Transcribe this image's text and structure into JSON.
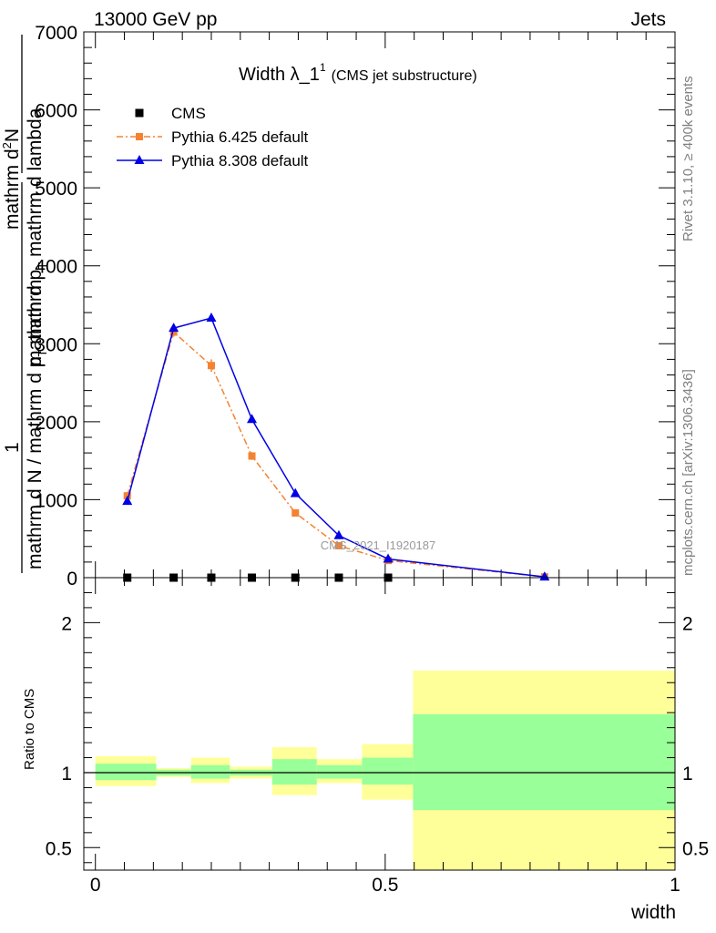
{
  "header": {
    "left": "13000 GeV pp",
    "right": "Jets"
  },
  "side_labels": {
    "rivet": "Rivet 3.1.10, ≥ 400k events",
    "mcplots": "mcplots.cern.ch [arXiv:1306.3436]"
  },
  "chart_data": [
    {
      "type": "line",
      "title": "Width λ_1",
      "title_sup": "1",
      "subtitle": "(CMS jet substructure)",
      "watermark": "CMS_2021_I1920187",
      "ylabel_parts": {
        "frac_num": "1",
        "frac_den": "mathrm d N / mathrm d p",
        "frac_den_sub": "T",
        "frac_den_tail": " mathrm",
        "deriv_num": "mathrm d",
        "deriv_num_sup": "2",
        "deriv_num_tail": "N",
        "deriv_den": "mathrm d p",
        "deriv_den_sub": "T",
        "deriv_den_tail": " mathrm d lambda"
      },
      "ylim": [
        0,
        7000
      ],
      "xlim": [
        -0.02,
        1.0
      ],
      "y_ticks": [
        {
          "value": 0,
          "label": "0"
        },
        {
          "value": 1000,
          "label": "1000"
        },
        {
          "value": 2000,
          "label": "2000"
        },
        {
          "value": 3000,
          "label": "3000"
        },
        {
          "value": 4000,
          "label": "4000"
        },
        {
          "value": 5000,
          "label": "5000"
        },
        {
          "value": 6000,
          "label": "6000"
        },
        {
          "value": 7000,
          "label": "7000"
        }
      ],
      "legend": [
        {
          "label": "CMS",
          "series": "cms"
        },
        {
          "label": "Pythia 6.425 default",
          "series": "p6"
        },
        {
          "label": "Pythia 8.308 default",
          "series": "p8"
        }
      ],
      "legend_position": "top-left",
      "series": [
        {
          "name": "CMS",
          "key": "cms",
          "color": "#000000",
          "marker": "square",
          "line": "none",
          "x": [
            0.055,
            0.135,
            0.2,
            0.27,
            0.345,
            0.42,
            0.505
          ],
          "y": [
            0,
            0,
            0,
            0,
            0,
            0,
            0
          ]
        },
        {
          "name": "Pythia 6.425 default",
          "key": "p6",
          "color": "#f58231",
          "marker": "square",
          "line": "dashdot",
          "x": [
            0.055,
            0.135,
            0.2,
            0.27,
            0.345,
            0.42,
            0.505,
            0.775
          ],
          "y": [
            1050,
            3150,
            2720,
            1560,
            830,
            410,
            220,
            10
          ],
          "err": [
            40,
            60,
            80,
            50,
            30,
            20,
            15,
            5
          ]
        },
        {
          "name": "Pythia 8.308 default",
          "key": "p8",
          "color": "#0000e6",
          "marker": "triangle",
          "line": "solid",
          "x": [
            0.055,
            0.135,
            0.2,
            0.27,
            0.345,
            0.42,
            0.505,
            0.775
          ],
          "y": [
            980,
            3200,
            3330,
            2030,
            1080,
            540,
            240,
            10
          ],
          "err": [
            0,
            0,
            0,
            0,
            0,
            0,
            0,
            0
          ]
        }
      ]
    },
    {
      "type": "area",
      "ylabel": "Ratio to CMS",
      "xlabel": "width",
      "xlim": [
        -0.02,
        1.0
      ],
      "ylim": [
        0.35,
        2.3
      ],
      "y_ticks": [
        {
          "value": 0.5,
          "label": "0.5"
        },
        {
          "value": 1,
          "label": "1"
        },
        {
          "value": 2,
          "label": "2"
        }
      ],
      "x_ticks": [
        {
          "value": 0,
          "label": "0"
        },
        {
          "value": 0.5,
          "label": "0.5"
        },
        {
          "value": 1,
          "label": "1"
        }
      ],
      "colors": {
        "outer": "#ffff99",
        "inner": "#99ff99",
        "line": "#000000"
      },
      "bands": [
        {
          "x0": 0.0,
          "x1": 0.105,
          "outer": [
            0.91,
            1.11
          ],
          "inner": [
            0.95,
            1.06
          ]
        },
        {
          "x0": 0.105,
          "x1": 0.165,
          "outer": [
            0.97,
            1.03
          ],
          "inner": [
            0.98,
            1.02
          ]
        },
        {
          "x0": 0.165,
          "x1": 0.232,
          "outer": [
            0.93,
            1.1
          ],
          "inner": [
            0.96,
            1.05
          ]
        },
        {
          "x0": 0.232,
          "x1": 0.305,
          "outer": [
            0.96,
            1.04
          ],
          "inner": [
            0.98,
            1.02
          ]
        },
        {
          "x0": 0.305,
          "x1": 0.382,
          "outer": [
            0.85,
            1.17
          ],
          "inner": [
            0.92,
            1.09
          ]
        },
        {
          "x0": 0.382,
          "x1": 0.46,
          "outer": [
            0.93,
            1.09
          ],
          "inner": [
            0.96,
            1.05
          ]
        },
        {
          "x0": 0.46,
          "x1": 0.548,
          "outer": [
            0.82,
            1.19
          ],
          "inner": [
            0.92,
            1.1
          ]
        },
        {
          "x0": 0.548,
          "x1": 1.0,
          "outer": [
            0.35,
            1.68
          ],
          "inner": [
            0.75,
            1.39
          ]
        }
      ]
    }
  ]
}
